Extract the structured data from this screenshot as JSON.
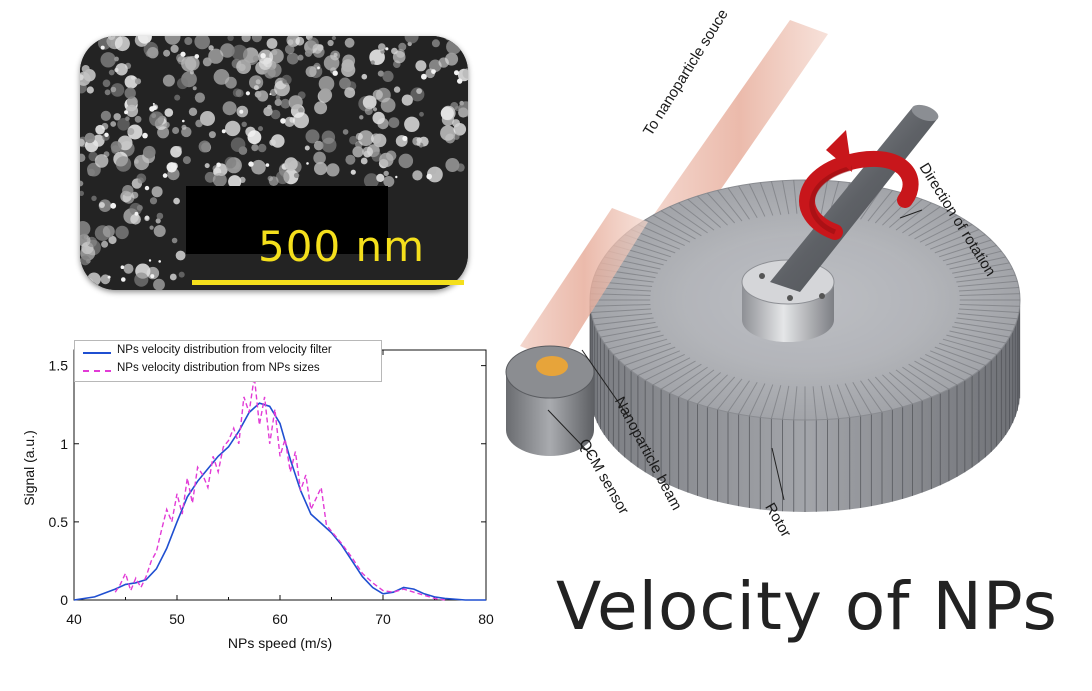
{
  "sem_image": {
    "scale_label": "500 nm",
    "scale_color": "#f4df1c"
  },
  "chart_data": {
    "type": "line",
    "title": "",
    "xlabel": "NPs speed (m/s)",
    "ylabel": "Signal (a.u.)",
    "xlim": [
      40,
      80
    ],
    "ylim": [
      0,
      1.6
    ],
    "xticks": [
      40,
      50,
      60,
      70,
      80
    ],
    "yticks": [
      0,
      0.5,
      1,
      1.5
    ],
    "ytick_labels": [
      "0",
      "0.5",
      "1",
      "1.5"
    ],
    "grid": false,
    "legend_position": "top-left",
    "series": [
      {
        "name": "NPs velocity distribution from velocity filter",
        "color": "#1f4fd1",
        "style": "solid",
        "x": [
          40,
          42,
          44,
          45,
          46,
          47,
          48,
          49,
          50,
          51,
          52,
          53,
          54,
          55,
          56,
          57,
          58,
          59,
          60,
          61,
          62,
          63,
          64,
          65,
          66,
          67,
          68,
          69,
          70,
          71,
          72,
          73,
          74,
          75,
          76,
          78,
          80
        ],
        "y": [
          0,
          0.02,
          0.07,
          0.1,
          0.11,
          0.13,
          0.2,
          0.33,
          0.5,
          0.66,
          0.76,
          0.84,
          0.92,
          0.98,
          1.08,
          1.2,
          1.26,
          1.24,
          1.13,
          0.9,
          0.7,
          0.55,
          0.49,
          0.43,
          0.35,
          0.25,
          0.15,
          0.08,
          0.04,
          0.05,
          0.08,
          0.07,
          0.04,
          0.02,
          0.01,
          0,
          0
        ]
      },
      {
        "name": "NPs velocity distribution from NPs sizes",
        "color": "#e23bd6",
        "style": "dashed",
        "x": [
          44,
          44.5,
          45,
          45.5,
          46,
          46.5,
          47,
          47.5,
          48,
          48.5,
          49,
          49.5,
          50,
          50.5,
          51,
          51.5,
          52,
          52.5,
          53,
          53.5,
          54,
          54.5,
          55,
          55.5,
          56,
          56.5,
          57,
          57.5,
          58,
          58.5,
          59,
          59.5,
          60,
          60.5,
          61,
          61.5,
          62,
          62.5,
          63,
          63.5,
          64,
          64.5,
          65,
          66,
          67,
          68,
          69,
          70,
          71,
          72,
          73,
          74,
          75,
          76
        ],
        "y": [
          0.05,
          0.1,
          0.17,
          0.06,
          0.14,
          0.08,
          0.15,
          0.25,
          0.31,
          0.45,
          0.58,
          0.5,
          0.68,
          0.55,
          0.78,
          0.62,
          0.85,
          0.8,
          0.72,
          0.92,
          0.82,
          0.98,
          1.02,
          1.1,
          1.0,
          1.3,
          1.2,
          1.43,
          1.12,
          1.3,
          1.0,
          1.22,
          0.92,
          1.03,
          0.82,
          0.95,
          0.7,
          0.8,
          0.58,
          0.65,
          0.72,
          0.48,
          0.44,
          0.36,
          0.27,
          0.17,
          0.11,
          0.06,
          0.05,
          0.07,
          0.05,
          0.03,
          0.01,
          0
        ]
      }
    ]
  },
  "diagram": {
    "labels": {
      "source": "To nanoparticle souce",
      "rotation": "Direction of rotation",
      "beam": "Nanoparticle beam",
      "qcm": "QCM sensor",
      "rotor": "Rotor"
    },
    "colors": {
      "beam": "#e8b7a8",
      "rotor": "#8f9196",
      "arrow": "#c8161b",
      "sensor_window": "#e7a43a"
    }
  },
  "title": "Velocity of NPs"
}
